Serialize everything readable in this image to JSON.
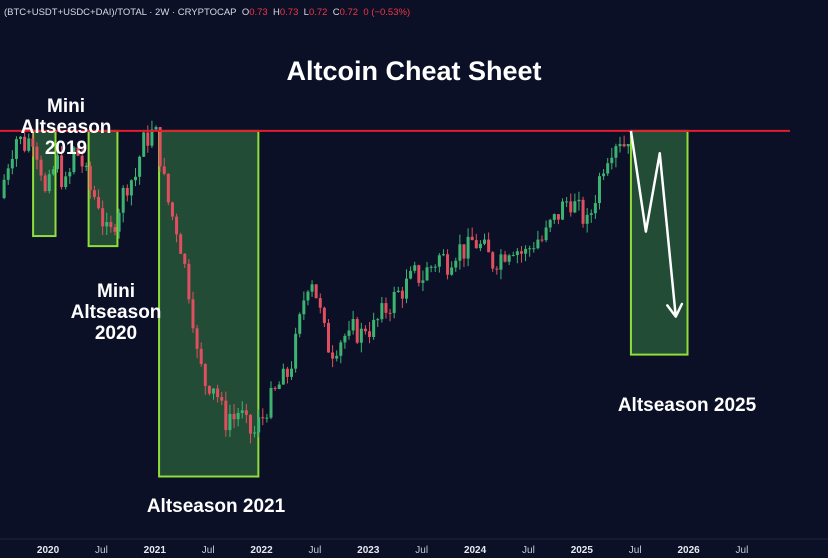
{
  "header": {
    "symbol": "(BTC+USDT+USDC+DAI)/TOTAL · 2W · CRYPTOCAP",
    "o_label": "O",
    "o_val": "0.73",
    "h_label": "H",
    "h_val": "0.73",
    "l_label": "L",
    "l_val": "0.72",
    "c_label": "C",
    "c_val": "0.72",
    "change": "0 (−0.53%)"
  },
  "chart_data": {
    "type": "candlestick",
    "title": "Altcoin Cheat Sheet",
    "x_ticks": [
      {
        "label": "2020",
        "year": true
      },
      {
        "label": "Jul",
        "year": false
      },
      {
        "label": "2021",
        "year": true
      },
      {
        "label": "Jul",
        "year": false
      },
      {
        "label": "2022",
        "year": true
      },
      {
        "label": "Jul",
        "year": false
      },
      {
        "label": "2023",
        "year": true
      },
      {
        "label": "Jul",
        "year": false
      },
      {
        "label": "2024",
        "year": true
      },
      {
        "label": "Jul",
        "year": false
      },
      {
        "label": "2025",
        "year": true
      },
      {
        "label": "Jul",
        "year": false
      },
      {
        "label": "2026",
        "year": true
      },
      {
        "label": "Jul",
        "year": false
      }
    ],
    "x_range": [
      2019.55,
      2026.95
    ],
    "y_range": [
      0.4,
      0.78
    ],
    "resistance_level": 0.73,
    "colors": {
      "up": "#3cb371",
      "down": "#e04f5f",
      "box_fill": "#27573a",
      "box_stroke": "#8fde3a",
      "resistance": "#e11d2e",
      "arrow": "#ffffff"
    },
    "close_path": [
      [
        2019.55,
        0.67
      ],
      [
        2019.62,
        0.7
      ],
      [
        2019.7,
        0.725
      ],
      [
        2019.78,
        0.718
      ],
      [
        2019.86,
        0.726
      ],
      [
        2019.93,
        0.7
      ],
      [
        2019.98,
        0.668
      ],
      [
        2020.03,
        0.688
      ],
      [
        2020.08,
        0.705
      ],
      [
        2020.13,
        0.688
      ],
      [
        2020.18,
        0.678
      ],
      [
        2020.25,
        0.716
      ],
      [
        2020.32,
        0.7
      ],
      [
        2020.4,
        0.676
      ],
      [
        2020.47,
        0.668
      ],
      [
        2020.52,
        0.646
      ],
      [
        2020.57,
        0.633
      ],
      [
        2020.62,
        0.648
      ],
      [
        2020.68,
        0.668
      ],
      [
        2020.75,
        0.685
      ],
      [
        2020.82,
        0.69
      ],
      [
        2020.88,
        0.718
      ],
      [
        2020.94,
        0.725
      ],
      [
        2021.0,
        0.73
      ],
      [
        2021.03,
        0.72
      ],
      [
        2021.07,
        0.695
      ],
      [
        2021.11,
        0.672
      ],
      [
        2021.16,
        0.655
      ],
      [
        2021.2,
        0.645
      ],
      [
        2021.25,
        0.625
      ],
      [
        2021.3,
        0.598
      ],
      [
        2021.35,
        0.572
      ],
      [
        2021.39,
        0.532
      ],
      [
        2021.44,
        0.515
      ],
      [
        2021.49,
        0.5
      ],
      [
        2021.53,
        0.508
      ],
      [
        2021.57,
        0.5
      ],
      [
        2021.62,
        0.482
      ],
      [
        2021.66,
        0.47
      ],
      [
        2021.71,
        0.478
      ],
      [
        2021.75,
        0.472
      ],
      [
        2021.79,
        0.482
      ],
      [
        2021.84,
        0.468
      ],
      [
        2021.88,
        0.462
      ],
      [
        2021.93,
        0.458
      ],
      [
        2021.97,
        0.468
      ],
      [
        2022.02,
        0.476
      ],
      [
        2022.06,
        0.486
      ],
      [
        2022.11,
        0.492
      ],
      [
        2022.16,
        0.502
      ],
      [
        2022.21,
        0.508
      ],
      [
        2022.26,
        0.515
      ],
      [
        2022.31,
        0.535
      ],
      [
        2022.36,
        0.56
      ],
      [
        2022.41,
        0.588
      ],
      [
        2022.46,
        0.603
      ],
      [
        2022.51,
        0.585
      ],
      [
        2022.56,
        0.562
      ],
      [
        2022.61,
        0.54
      ],
      [
        2022.66,
        0.534
      ],
      [
        2022.71,
        0.54
      ],
      [
        2022.77,
        0.548
      ],
      [
        2022.82,
        0.543
      ],
      [
        2022.87,
        0.555
      ],
      [
        2022.92,
        0.545
      ],
      [
        2022.97,
        0.556
      ],
      [
        2023.03,
        0.552
      ],
      [
        2023.09,
        0.56
      ],
      [
        2023.14,
        0.568
      ],
      [
        2023.2,
        0.575
      ],
      [
        2023.26,
        0.583
      ],
      [
        2023.32,
        0.588
      ],
      [
        2023.38,
        0.595
      ],
      [
        2023.44,
        0.602
      ],
      [
        2023.5,
        0.598
      ],
      [
        2023.56,
        0.607
      ],
      [
        2023.62,
        0.612
      ],
      [
        2023.68,
        0.619
      ],
      [
        2023.74,
        0.612
      ],
      [
        2023.8,
        0.622
      ],
      [
        2023.86,
        0.625
      ],
      [
        2023.92,
        0.622
      ],
      [
        2023.98,
        0.632
      ],
      [
        2024.04,
        0.627
      ],
      [
        2024.1,
        0.622
      ],
      [
        2024.16,
        0.612
      ],
      [
        2024.22,
        0.617
      ],
      [
        2024.28,
        0.622
      ],
      [
        2024.34,
        0.629
      ],
      [
        2024.4,
        0.624
      ],
      [
        2024.46,
        0.619
      ],
      [
        2024.52,
        0.627
      ],
      [
        2024.58,
        0.634
      ],
      [
        2024.64,
        0.632
      ],
      [
        2024.7,
        0.645
      ],
      [
        2024.76,
        0.652
      ],
      [
        2024.82,
        0.662
      ],
      [
        2024.88,
        0.67
      ],
      [
        2024.94,
        0.662
      ],
      [
        2025.0,
        0.655
      ],
      [
        2025.05,
        0.646
      ],
      [
        2025.1,
        0.662
      ],
      [
        2025.15,
        0.682
      ],
      [
        2025.2,
        0.7
      ],
      [
        2025.25,
        0.712
      ],
      [
        2025.3,
        0.72
      ],
      [
        2025.35,
        0.725
      ],
      [
        2025.4,
        0.718
      ],
      [
        2025.45,
        0.73
      ]
    ],
    "boxes": [
      {
        "name": "mini-altseason-2019-box",
        "x0": 2019.86,
        "x1": 2020.07,
        "y_top": 0.73,
        "y_bottom": 0.636
      },
      {
        "name": "mini-altseason-2020-box",
        "x0": 2020.38,
        "x1": 2020.65,
        "y_top": 0.73,
        "y_bottom": 0.627
      },
      {
        "name": "altseason-2021-box",
        "x0": 2021.04,
        "x1": 2021.97,
        "y_top": 0.73,
        "y_bottom": 0.421
      },
      {
        "name": "altseason-2025-box",
        "x0": 2025.46,
        "x1": 2025.99,
        "y_top": 0.73,
        "y_bottom": 0.53
      }
    ],
    "projection_path": [
      [
        2025.46,
        0.73
      ],
      [
        2025.6,
        0.64
      ],
      [
        2025.73,
        0.71
      ],
      [
        2025.88,
        0.564
      ]
    ]
  },
  "annotations": {
    "mini_2019": [
      "Mini",
      "Altseason",
      "2019"
    ],
    "mini_2020": [
      "Mini",
      "Altseason",
      "2020"
    ],
    "alt_2021": "Altseason 2021",
    "alt_2025": "Altseason 2025"
  }
}
